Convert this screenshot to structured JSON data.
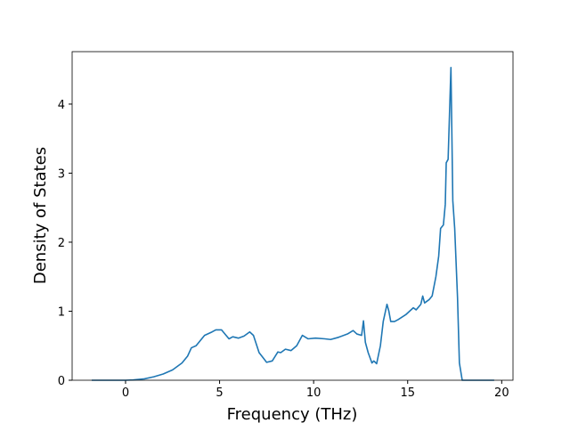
{
  "chart_data": {
    "type": "line",
    "xlabel": "Frequency (THz)",
    "ylabel": "Density of States",
    "xlim": [
      -2.84,
      20.6
    ],
    "ylim": [
      0,
      4.76
    ],
    "xticks": [
      0,
      5,
      10,
      15,
      20
    ],
    "yticks": [
      0,
      1,
      2,
      3,
      4
    ],
    "x": [
      -1.8,
      0,
      0.4,
      1,
      1.5,
      2,
      2.5,
      3,
      3.3,
      3.5,
      3.75,
      4.2,
      4.6,
      4.8,
      5.1,
      5.5,
      5.7,
      6.0,
      6.3,
      6.6,
      6.8,
      7.1,
      7.3,
      7.5,
      7.8,
      8.1,
      8.25,
      8.5,
      8.8,
      9.1,
      9.4,
      9.7,
      10.1,
      10.6,
      10.9,
      11.3,
      11.8,
      12.1,
      12.3,
      12.55,
      12.65,
      12.75,
      12.9,
      13.1,
      13.2,
      13.35,
      13.55,
      13.7,
      13.9,
      14.0,
      14.1,
      14.3,
      14.5,
      14.9,
      15.1,
      15.3,
      15.45,
      15.7,
      15.8,
      15.9,
      16.15,
      16.3,
      16.5,
      16.65,
      16.75,
      16.9,
      17.0,
      17.05,
      17.15,
      17.3,
      17.4,
      17.5,
      17.65,
      17.75,
      17.9,
      19.6
    ],
    "series": [
      {
        "name": "DOS",
        "color": "#1f77b4",
        "values": [
          0,
          0,
          0.005,
          0.02,
          0.05,
          0.09,
          0.15,
          0.25,
          0.35,
          0.47,
          0.5,
          0.65,
          0.7,
          0.73,
          0.73,
          0.6,
          0.63,
          0.61,
          0.64,
          0.7,
          0.65,
          0.4,
          0.33,
          0.26,
          0.28,
          0.41,
          0.4,
          0.45,
          0.43,
          0.5,
          0.65,
          0.6,
          0.61,
          0.6,
          0.59,
          0.62,
          0.67,
          0.72,
          0.67,
          0.65,
          0.86,
          0.55,
          0.4,
          0.25,
          0.28,
          0.24,
          0.5,
          0.85,
          1.1,
          1.0,
          0.85,
          0.85,
          0.88,
          0.95,
          1.0,
          1.05,
          1.02,
          1.1,
          1.22,
          1.12,
          1.17,
          1.22,
          1.5,
          1.8,
          2.2,
          2.25,
          2.55,
          3.15,
          3.2,
          4.53,
          2.6,
          2.2,
          1.2,
          0.25,
          0,
          0
        ]
      }
    ]
  }
}
